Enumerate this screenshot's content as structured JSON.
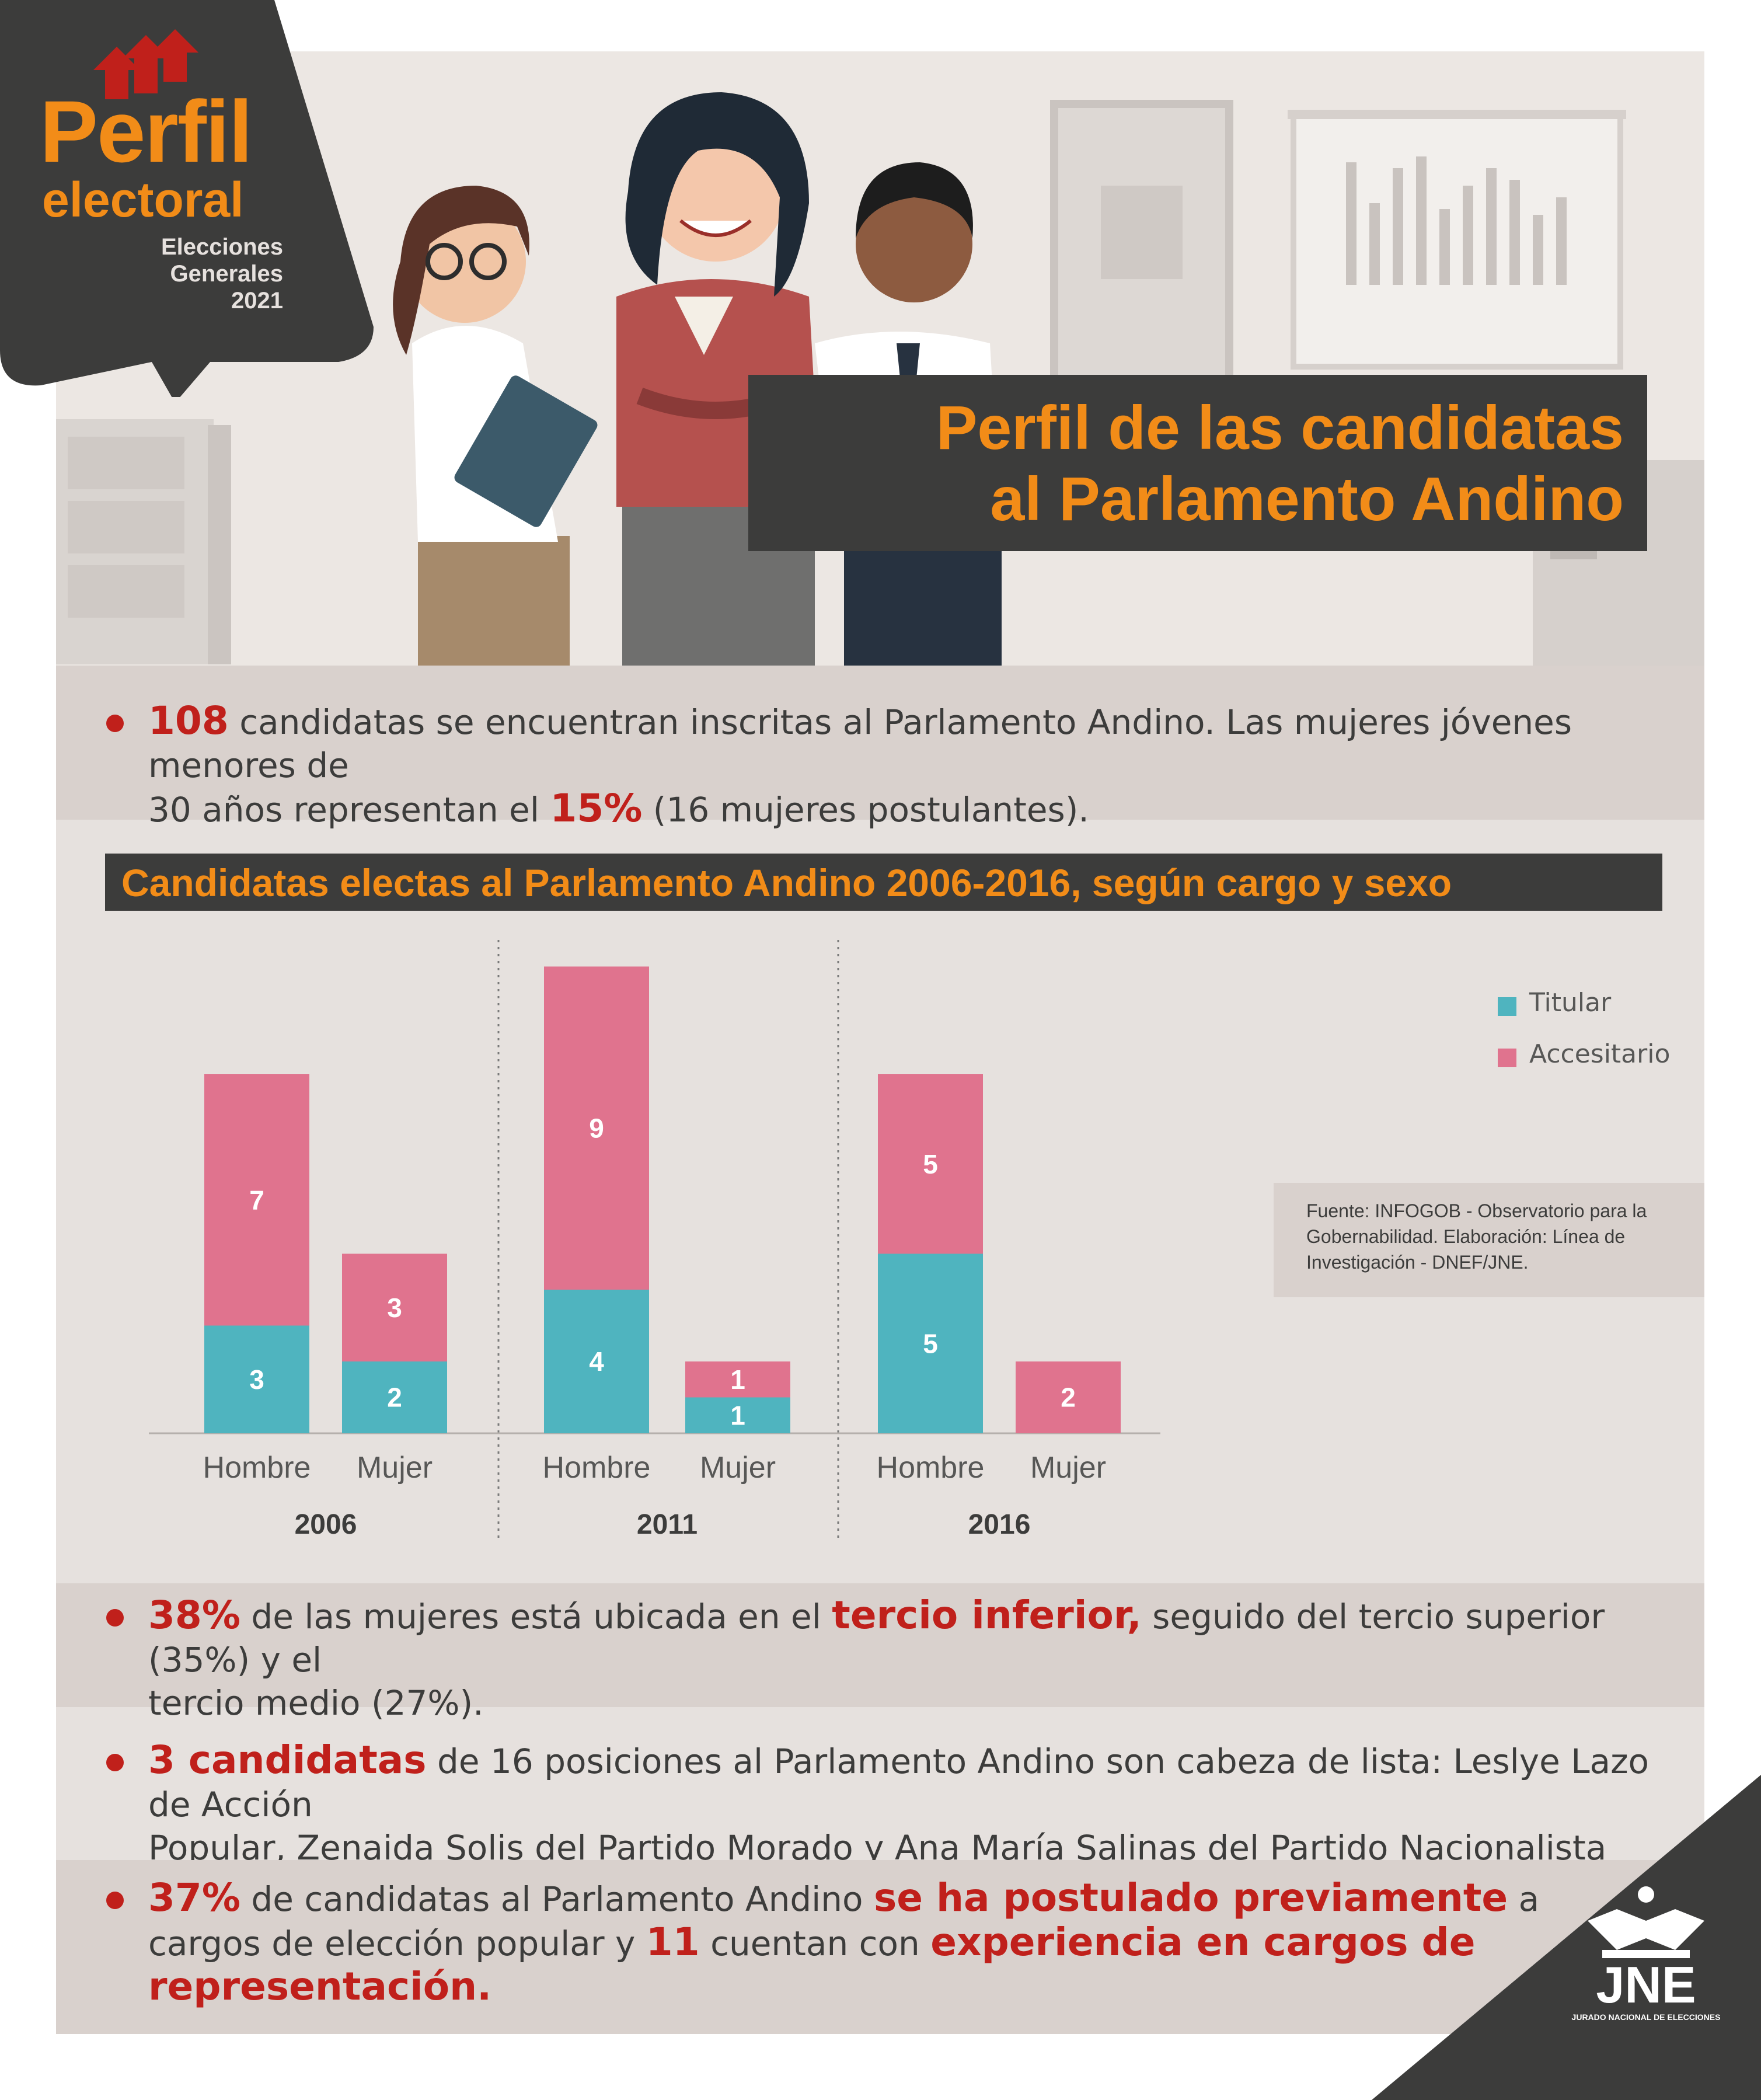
{
  "header": {
    "logo_line1": "Perfil",
    "logo_line2": "electoral",
    "election_line1": "Elecciones",
    "election_line2": "Generales",
    "election_year": "2021",
    "title_line1": "Perfil de las candidatas",
    "title_line2": "al Parlamento Andino"
  },
  "facts": {
    "f1": {
      "num": "108",
      "text1": " candidatas se encuentran inscritas al Parlamento Andino. Las mujeres jóvenes menores de",
      "text2": "30 años representan el ",
      "pct": "15%",
      "text3": " (16 mujeres postulantes)."
    },
    "f2": {
      "num": "38%",
      "text1": " de las mujeres está ubicada en el ",
      "hl": "tercio inferior,",
      "text2": " seguido del tercio superior (35%) y el",
      "text3": "tercio medio (27%)."
    },
    "f3": {
      "num": "3 candidatas",
      "text1": " de 16 posiciones al Parlamento Andino son cabeza de lista: Leslye Lazo de Acción",
      "text2": "Popular, Zenaida Solis del Partido Morado y Ana María Salinas del Partido Nacionalista Peruano."
    },
    "f4": {
      "num": "37%",
      "text1": " de candidatas al Parlamento Andino ",
      "hl1": "se ha postulado previamente",
      "text2": " a",
      "text3": "cargos de elección popular y ",
      "num2": "11",
      "text4": " cuentan con ",
      "hl2": "experiencia en cargos de",
      "hl3": "representación."
    }
  },
  "chart_title": "Candidatas electas al Parlamento Andino 2006-2016, según cargo y sexo",
  "source": "Fuente: INFOGOB - Observatorio para la Gobernabilidad. Elaboración: Línea de Investigación - DNEF/JNE.",
  "brand": {
    "name": "JNE",
    "subtitle": "JURADO NACIONAL DE ELECCIONES"
  },
  "colors": {
    "titular": "#4fb4bf",
    "accesitario": "#e0738e",
    "accent": "#f28c18",
    "highlight": "#c0201b",
    "dark": "#3c3c3b"
  },
  "chart_data": {
    "type": "bar",
    "stacked": true,
    "title": "Candidatas electas al Parlamento Andino 2006-2016, según cargo y sexo",
    "groups": [
      "2006",
      "2011",
      "2016"
    ],
    "categories": [
      "Hombre",
      "Mujer"
    ],
    "series": [
      {
        "name": "Titular",
        "values": [
          [
            3,
            2
          ],
          [
            4,
            1
          ],
          [
            5,
            0
          ]
        ]
      },
      {
        "name": "Accesitario",
        "values": [
          [
            7,
            3
          ],
          [
            9,
            1
          ],
          [
            5,
            2
          ]
        ]
      }
    ],
    "legend_position": "top-right"
  }
}
